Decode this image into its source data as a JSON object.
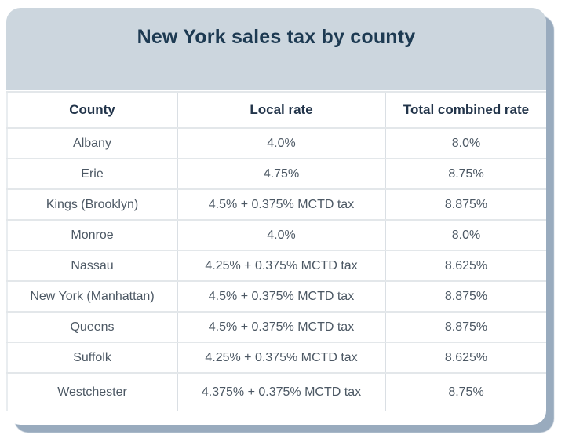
{
  "title": "New York sales tax by county",
  "chart_data": {
    "type": "table",
    "title": "New York sales tax by county",
    "columns": [
      "County",
      "Local rate",
      "Total combined rate"
    ],
    "rows": [
      [
        "Albany",
        "4.0%",
        "8.0%"
      ],
      [
        "Erie",
        "4.75%",
        "8.75%"
      ],
      [
        "Kings (Brooklyn)",
        "4.5% + 0.375% MCTD tax",
        "8.875%"
      ],
      [
        "Monroe",
        "4.0%",
        "8.0%"
      ],
      [
        "Nassau",
        "4.25% + 0.375% MCTD tax",
        "8.625%"
      ],
      [
        "New York (Manhattan)",
        "4.5% + 0.375% MCTD tax",
        "8.875%"
      ],
      [
        "Queens",
        "4.5% + 0.375% MCTD tax",
        "8.875%"
      ],
      [
        "Suffolk",
        "4.25% + 0.375% MCTD tax",
        "8.625%"
      ],
      [
        "Westchester",
        "4.375% + 0.375% MCTD tax",
        "8.75%"
      ]
    ]
  },
  "colors": {
    "header_band": "#ccd6de",
    "title_text": "#1d3a52",
    "column_header_text": "#22344a",
    "cell_text": "#4c5864",
    "row_border": "#e3e7ea",
    "column_border": "#dadfe4",
    "card_background": "#ffffff",
    "card_shadow": "#99abbe"
  }
}
